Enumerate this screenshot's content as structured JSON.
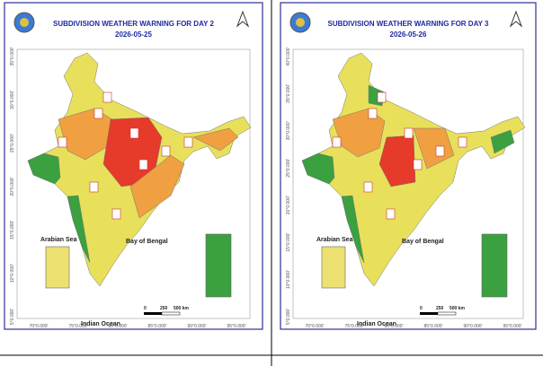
{
  "panels": [
    {
      "title": "SUBDIVISION WEATHER WARNING FOR DAY 2",
      "date": "2026-05-25",
      "lat_labels": [
        "35°0.000'",
        "30°0.000'",
        "25°0.000'",
        "20°0.000'",
        "15°0.000'",
        "10°0.000'",
        "5°0.000'"
      ],
      "lon_labels": [
        "70°0.000'",
        "75°0.000'",
        "80°0.000'",
        "85°0.000'",
        "90°0.000'",
        "95°0.000'"
      ],
      "seas": {
        "arabian": "Arabian Sea",
        "bay": "Bay of Bengal",
        "ocean": "Indian Ocean"
      },
      "scale": [
        "0",
        "250",
        "500 km"
      ]
    },
    {
      "title": "SUBDIVISION WEATHER WARNING FOR DAY 3",
      "date": "2026-05-26",
      "lat_labels": [
        "40°0.000'",
        "35°0.000'",
        "30°0.000'",
        "25°0.000'",
        "20°0.000'",
        "15°0.000'",
        "10°0.000'",
        "5°0.000'"
      ],
      "lon_labels": [
        "70°0.000'",
        "75°0.000'",
        "80°0.000'",
        "85°0.000'",
        "90°0.000'",
        "95°0.000'"
      ],
      "seas": {
        "arabian": "Arabian Sea",
        "bay": "Bay of Bengal",
        "ocean": "Indian Ocean"
      },
      "scale": [
        "0",
        "250",
        "500 km"
      ]
    }
  ]
}
